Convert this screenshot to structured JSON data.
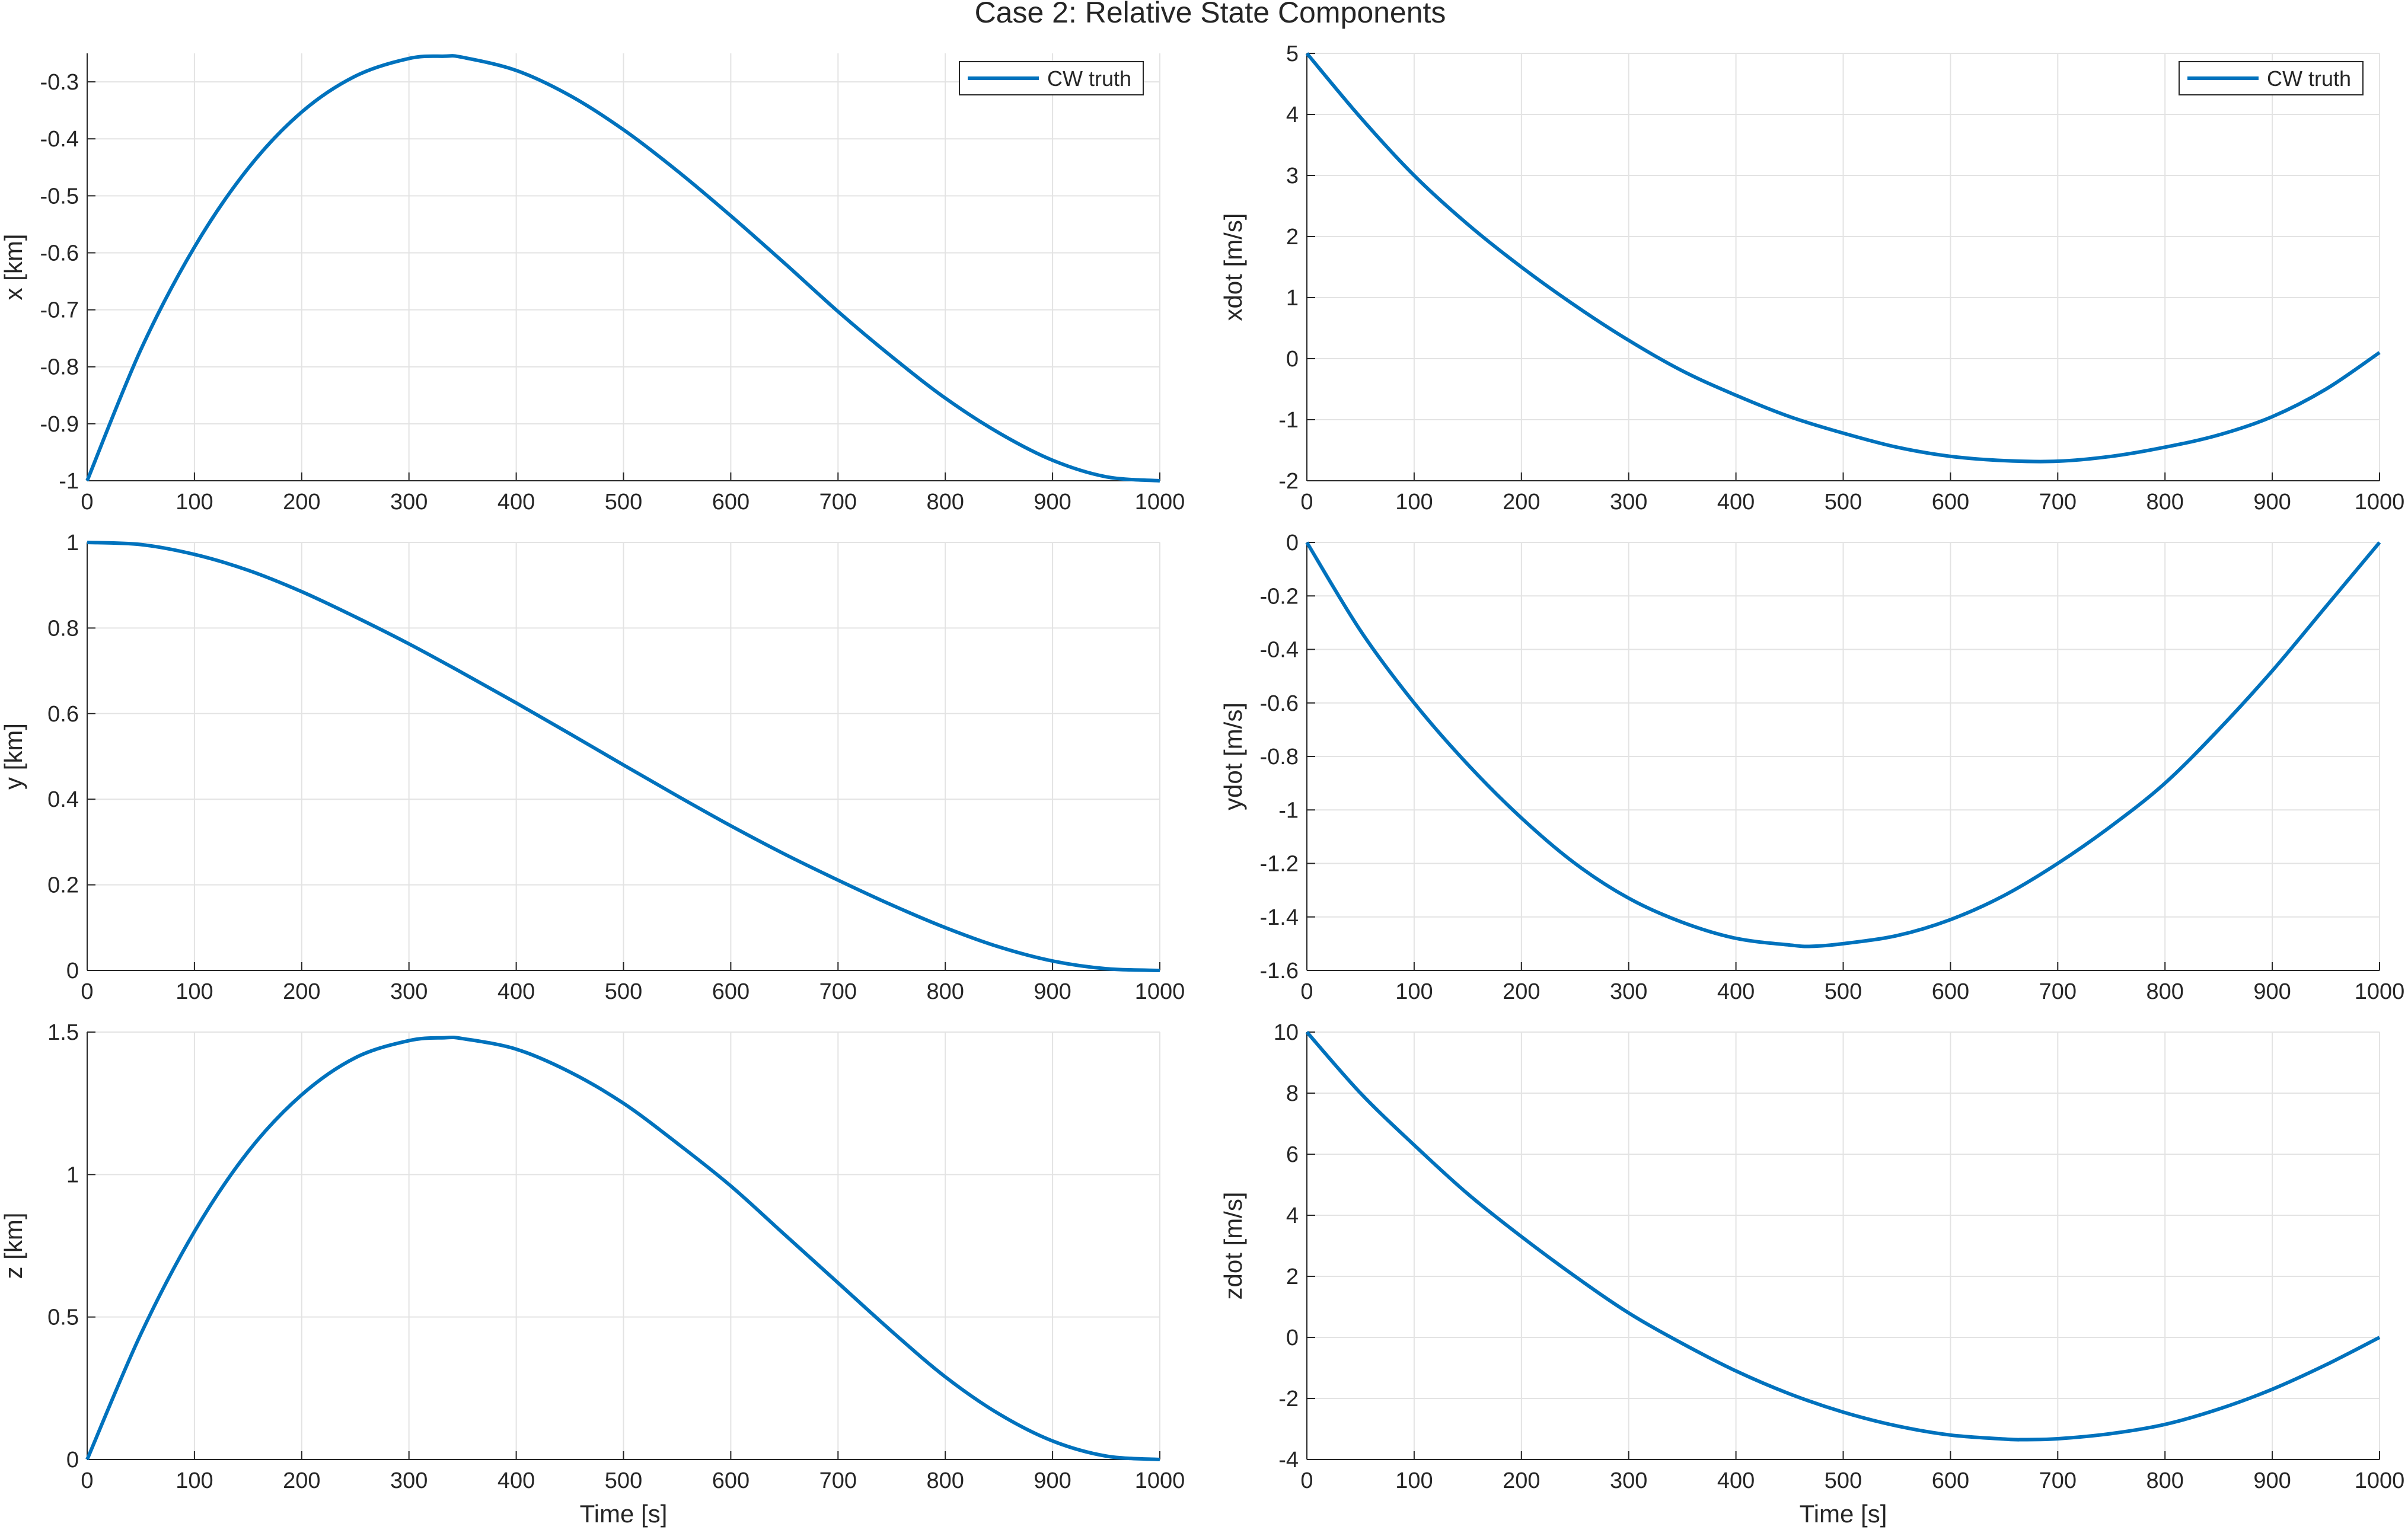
{
  "figure": {
    "title": "Case 2: Relative State Components"
  },
  "colors": {
    "line": "#0072BD",
    "grid": "#e3e3e3",
    "axis": "#262626"
  },
  "chart_data": [
    {
      "id": "x",
      "type": "line",
      "ylabel": "x [km]",
      "xlabel": "",
      "xlim": [
        0,
        1000
      ],
      "ylim": [
        -1,
        -0.25
      ],
      "xticks": [
        0,
        100,
        200,
        300,
        400,
        500,
        600,
        700,
        800,
        900,
        1000
      ],
      "yticks": [
        -1,
        -0.9,
        -0.8,
        -0.7,
        -0.6,
        -0.5,
        -0.4,
        -0.3
      ],
      "yticklabels": [
        "-1",
        "-0.9",
        "-0.8",
        "-0.7",
        "-0.6",
        "-0.5",
        "-0.4",
        "-0.3"
      ],
      "grid": true,
      "legend": {
        "entries": [
          "CW truth"
        ],
        "location": "top-right"
      },
      "series": [
        {
          "name": "CW truth",
          "x": [
            0,
            50,
            100,
            150,
            200,
            250,
            300,
            333,
            350,
            400,
            450,
            500,
            550,
            600,
            650,
            700,
            750,
            800,
            850,
            900,
            950,
            1000
          ],
          "values": [
            -1.0,
            -0.77,
            -0.59,
            -0.452,
            -0.353,
            -0.29,
            -0.259,
            -0.255,
            -0.257,
            -0.28,
            -0.324,
            -0.384,
            -0.456,
            -0.535,
            -0.618,
            -0.703,
            -0.782,
            -0.855,
            -0.916,
            -0.964,
            -0.993,
            -1.0
          ]
        }
      ]
    },
    {
      "id": "xdot",
      "type": "line",
      "ylabel": "xdot [m/s]",
      "xlabel": "",
      "xlim": [
        0,
        1000
      ],
      "ylim": [
        -2,
        5
      ],
      "xticks": [
        0,
        100,
        200,
        300,
        400,
        500,
        600,
        700,
        800,
        900,
        1000
      ],
      "yticks": [
        -2,
        -1,
        0,
        1,
        2,
        3,
        4,
        5
      ],
      "yticklabels": [
        "-2",
        "-1",
        "0",
        "1",
        "2",
        "3",
        "4",
        "5"
      ],
      "grid": true,
      "legend": {
        "entries": [
          "CW truth"
        ],
        "location": "top-right"
      },
      "series": [
        {
          "name": "CW truth",
          "x": [
            0,
            50,
            100,
            150,
            200,
            250,
            300,
            350,
            400,
            450,
            500,
            550,
            600,
            650,
            700,
            750,
            800,
            850,
            900,
            950,
            1000
          ],
          "values": [
            5.0,
            3.95,
            3.0,
            2.2,
            1.5,
            0.87,
            0.3,
            -0.2,
            -0.6,
            -0.95,
            -1.22,
            -1.45,
            -1.6,
            -1.67,
            -1.68,
            -1.6,
            -1.45,
            -1.25,
            -0.95,
            -0.5,
            0.1
          ]
        }
      ]
    },
    {
      "id": "y",
      "type": "line",
      "ylabel": "y [km]",
      "xlabel": "",
      "xlim": [
        0,
        1000
      ],
      "ylim": [
        0,
        1
      ],
      "xticks": [
        0,
        100,
        200,
        300,
        400,
        500,
        600,
        700,
        800,
        900,
        1000
      ],
      "yticks": [
        0,
        0.2,
        0.4,
        0.6,
        0.8,
        1
      ],
      "yticklabels": [
        "0",
        "0.2",
        "0.4",
        "0.6",
        "0.8",
        "1"
      ],
      "grid": true,
      "legend": null,
      "series": [
        {
          "name": "CW truth",
          "x": [
            0,
            50,
            100,
            150,
            200,
            250,
            300,
            350,
            400,
            450,
            500,
            550,
            600,
            650,
            700,
            750,
            800,
            850,
            900,
            950,
            1000
          ],
          "values": [
            1.0,
            0.995,
            0.972,
            0.935,
            0.885,
            0.826,
            0.763,
            0.695,
            0.625,
            0.553,
            0.48,
            0.408,
            0.338,
            0.272,
            0.211,
            0.153,
            0.1,
            0.055,
            0.022,
            0.004,
            0.0
          ]
        }
      ]
    },
    {
      "id": "ydot",
      "type": "line",
      "ylabel": "ydot [m/s]",
      "xlabel": "",
      "xlim": [
        0,
        1000
      ],
      "ylim": [
        -1.6,
        0
      ],
      "xticks": [
        0,
        100,
        200,
        300,
        400,
        500,
        600,
        700,
        800,
        900,
        1000
      ],
      "yticks": [
        -1.6,
        -1.4,
        -1.2,
        -1,
        -0.8,
        -0.6,
        -0.4,
        -0.2,
        0
      ],
      "yticklabels": [
        "-1.6",
        "-1.4",
        "-1.2",
        "-1",
        "-0.8",
        "-0.6",
        "-0.4",
        "-0.2",
        "0"
      ],
      "grid": true,
      "legend": null,
      "series": [
        {
          "name": "CW truth",
          "x": [
            0,
            50,
            100,
            150,
            200,
            250,
            300,
            350,
            400,
            450,
            470,
            500,
            550,
            600,
            650,
            700,
            750,
            800,
            850,
            900,
            950,
            1000
          ],
          "values": [
            0.0,
            -0.33,
            -0.6,
            -0.83,
            -1.03,
            -1.2,
            -1.33,
            -1.42,
            -1.48,
            -1.505,
            -1.51,
            -1.5,
            -1.47,
            -1.41,
            -1.32,
            -1.2,
            -1.06,
            -0.9,
            -0.7,
            -0.48,
            -0.24,
            0.0
          ]
        }
      ]
    },
    {
      "id": "z",
      "type": "line",
      "ylabel": "z [km]",
      "xlabel": "Time [s]",
      "xlim": [
        0,
        1000
      ],
      "ylim": [
        0,
        1.5
      ],
      "xticks": [
        0,
        100,
        200,
        300,
        400,
        500,
        600,
        700,
        800,
        900,
        1000
      ],
      "yticks": [
        0,
        0.5,
        1,
        1.5
      ],
      "yticklabels": [
        "0",
        "0.5",
        "1",
        "1.5"
      ],
      "grid": true,
      "legend": null,
      "series": [
        {
          "name": "CW truth",
          "x": [
            0,
            50,
            100,
            150,
            200,
            250,
            300,
            333,
            350,
            400,
            450,
            500,
            550,
            600,
            650,
            700,
            750,
            800,
            850,
            900,
            950,
            1000
          ],
          "values": [
            0.0,
            0.44,
            0.8,
            1.08,
            1.28,
            1.41,
            1.47,
            1.48,
            1.477,
            1.44,
            1.36,
            1.25,
            1.11,
            0.96,
            0.79,
            0.62,
            0.45,
            0.29,
            0.16,
            0.065,
            0.012,
            0.0
          ]
        }
      ]
    },
    {
      "id": "zdot",
      "type": "line",
      "ylabel": "zdot [m/s]",
      "xlabel": "Time [s]",
      "xlim": [
        0,
        1000
      ],
      "ylim": [
        -4,
        10
      ],
      "xticks": [
        0,
        100,
        200,
        300,
        400,
        500,
        600,
        700,
        800,
        900,
        1000
      ],
      "yticks": [
        -4,
        -2,
        0,
        2,
        4,
        6,
        8,
        10
      ],
      "yticklabels": [
        "-4",
        "-2",
        "0",
        "2",
        "4",
        "6",
        "8",
        "10"
      ],
      "grid": true,
      "legend": null,
      "series": [
        {
          "name": "CW truth",
          "x": [
            0,
            50,
            100,
            150,
            200,
            250,
            300,
            350,
            400,
            450,
            500,
            550,
            600,
            650,
            667,
            700,
            750,
            800,
            850,
            900,
            950,
            1000
          ],
          "values": [
            10.0,
            8.0,
            6.3,
            4.7,
            3.3,
            2.0,
            0.8,
            -0.2,
            -1.1,
            -1.85,
            -2.45,
            -2.9,
            -3.2,
            -3.33,
            -3.35,
            -3.32,
            -3.15,
            -2.85,
            -2.35,
            -1.7,
            -0.9,
            0.0
          ]
        }
      ]
    }
  ]
}
